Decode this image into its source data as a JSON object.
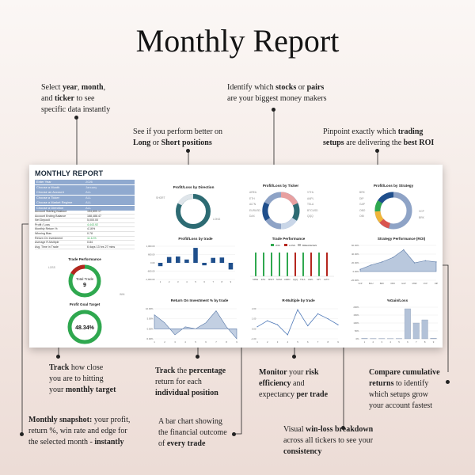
{
  "title": "Monthly Report",
  "callouts": {
    "select": [
      "Select ",
      "year",
      ", ",
      "month",
      ",",
      "and ",
      "ticker",
      " to see",
      "specific data instantly"
    ],
    "long_short": [
      "See if you perform better on",
      "Long",
      " or ",
      "Short positions"
    ],
    "stocks": [
      "Identify which ",
      "stocks",
      " or ",
      "pairs",
      "are your biggest money makers"
    ],
    "setups": [
      "Pinpoint exactly which ",
      "trading",
      "setups",
      " are delivering the ",
      "best ROI"
    ],
    "track_target": [
      "Track",
      " how close",
      "you are to hitting",
      "your ",
      "monthly target"
    ],
    "track_pct": [
      "Track",
      " the ",
      "percentage",
      "return for each",
      "individual position"
    ],
    "monitor": [
      "Monitor",
      " your ",
      "risk",
      "efficiency",
      " and",
      "expectancy ",
      "per trade"
    ],
    "compare": [
      "Compare cumulative",
      "returns",
      " to identify",
      "which setups grow",
      "your account fastest"
    ],
    "snapshot": [
      "Monthly snapshot:",
      " your profit,",
      "return %, win rate and edge for",
      "the selected month - ",
      "instantly"
    ],
    "bar_chart": [
      "A bar chart showing",
      "the financial outcome",
      "of ",
      "every trade"
    ],
    "winloss": [
      "Visual ",
      "win-loss breakdown",
      "across all tickers to see your",
      "consistency"
    ]
  },
  "dashboard": {
    "title": "MONTHLY REPORT",
    "inputs": [
      {
        "label": "Enter Year",
        "value": "2026"
      },
      {
        "label": "Choose a Month",
        "value": "January"
      },
      {
        "label": "Choose an Account",
        "value": "ALL"
      },
      {
        "label": "Choose a Ticker",
        "value": "ALL"
      },
      {
        "label": "Choose a Market Regime",
        "value": "ALL"
      },
      {
        "label": "Choose a Direction",
        "value": "ALL"
      }
    ],
    "stats": [
      {
        "label": "Account Starting Balance",
        "value": "154,600.17"
      },
      {
        "label": "Account Ending Balance",
        "value": "168,488.47"
      },
      {
        "label": "Net Deposit",
        "value": "5,000.00"
      },
      {
        "label": "Profit / Loss",
        "value": "4,443.92"
      },
      {
        "label": "Monthly Return %",
        "value": "4.16%"
      },
      {
        "label": "Winning Bias",
        "value": "0.78"
      },
      {
        "label": "Return On Investment",
        "value": "11.11%"
      },
      {
        "label": "Average R-Multiple",
        "value": "0.84"
      },
      {
        "label": "Avg. Time in Trade",
        "value": "6 days 13 hrs 27 mins"
      }
    ],
    "trade_performance": {
      "title": "Trade Performance",
      "center_label": "Total Trade",
      "center_value": "9",
      "loss_label": "LOSS",
      "win_label": "WIN"
    },
    "goal": {
      "title": "Profit Goal Target",
      "value": "48.34%"
    },
    "pl_direction": {
      "title": "Profit/Loss by Direction",
      "short": "SHORT",
      "long": "LONG"
    },
    "pl_ticker": {
      "title": "Profit/Loss by Ticker",
      "labels_left": [
        "AREA",
        "ETH",
        "ALTN",
        "EURUSD",
        "DAX"
      ],
      "labels_right": [
        "VTHL",
        "AAPL",
        "TSLA",
        "BTCUSD",
        "QQQ"
      ]
    },
    "pl_strategy": {
      "title": "Profit/Loss by Strategy",
      "labels_left": [
        "BRK",
        "DIP",
        "GAP",
        "OBO",
        "OBI"
      ],
      "labels_right": [
        "VCP",
        "BRK"
      ]
    },
    "pl_trade": {
      "title": "Profit/Loss by trade",
      "ticks": [
        "1,000.00",
        "600.00",
        "0.00",
        "-600.00",
        "-1,000.00"
      ]
    },
    "trade_perf_bars": {
      "title": "Trade Performance",
      "legend": [
        "WIN",
        "LOSS",
        "BREAKEVEN"
      ],
      "tickers": [
        "SPDE",
        "ETH",
        "MSFT",
        "NVDA",
        "AMZN",
        "QQQ",
        "TSLA",
        "AAPL",
        "SPY",
        "ALTN"
      ]
    },
    "strategy_perf": {
      "title": "Strategy Performance (ROI)",
      "ticks": [
        "60.00%",
        "40.00%",
        "20.00%",
        "0.00%",
        "-20.00%"
      ],
      "cats": [
        "VCP",
        "BGU",
        "BRK",
        "OBO",
        "GAP",
        "MNR",
        "VCP",
        "DIP"
      ]
    },
    "roi_trade": {
      "title": "Return On Investment % by trade",
      "ticks": [
        "10.00%",
        "5.00%",
        "0.00%",
        "-5.00%"
      ]
    },
    "r_multiple": {
      "title": "R-Multiple by trade",
      "ticks": [
        "2.00",
        "1.00",
        "0.00",
        "-1.00"
      ]
    },
    "gain_loss": {
      "title": "%Gain/Loss",
      "ticks": [
        "200%",
        "150%",
        "100%",
        "50%",
        "0%"
      ]
    },
    "colors": {
      "navy": "#1f4f8c",
      "green": "#2fa84f",
      "red": "#c0392b",
      "teal": "#2d6b73",
      "slate": "#8ea3c6"
    }
  },
  "chart_data": [
    {
      "type": "bar",
      "title": "Profit/Loss by trade",
      "categories": [
        "1",
        "2",
        "3",
        "4",
        "5",
        "6",
        "7",
        "8",
        "9"
      ],
      "values": [
        -200,
        350,
        380,
        200,
        900,
        -150,
        300,
        320,
        -400
      ],
      "ylim": [
        -1000,
        1000
      ]
    },
    {
      "type": "line",
      "title": "Strategy Performance (ROI)",
      "categories": [
        "VCP",
        "BGU",
        "BRK",
        "OBO",
        "GAP",
        "MNR",
        "VCP",
        "DIP"
      ],
      "values": [
        5,
        15,
        22,
        32,
        50,
        20,
        25,
        22
      ],
      "ylim": [
        -20,
        60
      ]
    },
    {
      "type": "area",
      "title": "Return On Investment % by trade",
      "categories": [
        "1",
        "2",
        "3",
        "4",
        "5",
        "6",
        "7",
        "8",
        "9"
      ],
      "values": [
        7,
        3,
        -3,
        1,
        0,
        3,
        9,
        1,
        -6
      ],
      "ylim": [
        -5,
        10
      ]
    },
    {
      "type": "line",
      "title": "R-Multiple by trade",
      "categories": [
        "1",
        "2",
        "3",
        "4",
        "5",
        "6",
        "7",
        "8",
        "9"
      ],
      "values": [
        0.2,
        0.8,
        0.4,
        -0.6,
        1.9,
        0.3,
        1.5,
        1.0,
        0.4
      ],
      "ylim": [
        -1,
        2
      ]
    },
    {
      "type": "bar",
      "title": "%Gain/Loss",
      "categories": [
        "1",
        "2",
        "3",
        "4",
        "5",
        "6",
        "7",
        "8",
        "9"
      ],
      "values": [
        3,
        2,
        2,
        1,
        2,
        190,
        100,
        120,
        4
      ],
      "ylim": [
        0,
        200
      ]
    }
  ]
}
